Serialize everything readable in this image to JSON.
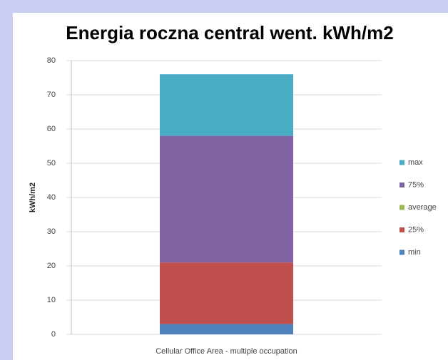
{
  "chart_data": {
    "type": "stacked_bar",
    "title": "Energia roczna central went. kWh/m2",
    "y_label": "kWh/m2",
    "categories": [
      "Cellular Office Area - multiple occupation"
    ],
    "series": [
      {
        "name": "min",
        "color": "#4f81bd",
        "values": [
          3
        ]
      },
      {
        "name": "25%",
        "color": "#c0504d",
        "values": [
          18
        ]
      },
      {
        "name": "average",
        "color": "#9bbb59",
        "values": [
          0
        ]
      },
      {
        "name": "75%",
        "color": "#8064a2",
        "values": [
          37
        ]
      },
      {
        "name": "max",
        "color": "#4bacc6",
        "values": [
          18
        ]
      }
    ],
    "ylim": [
      0,
      80
    ],
    "yticks": [
      0,
      10,
      20,
      30,
      40,
      50,
      60,
      70,
      80
    ],
    "grid": true,
    "legend": "right"
  }
}
